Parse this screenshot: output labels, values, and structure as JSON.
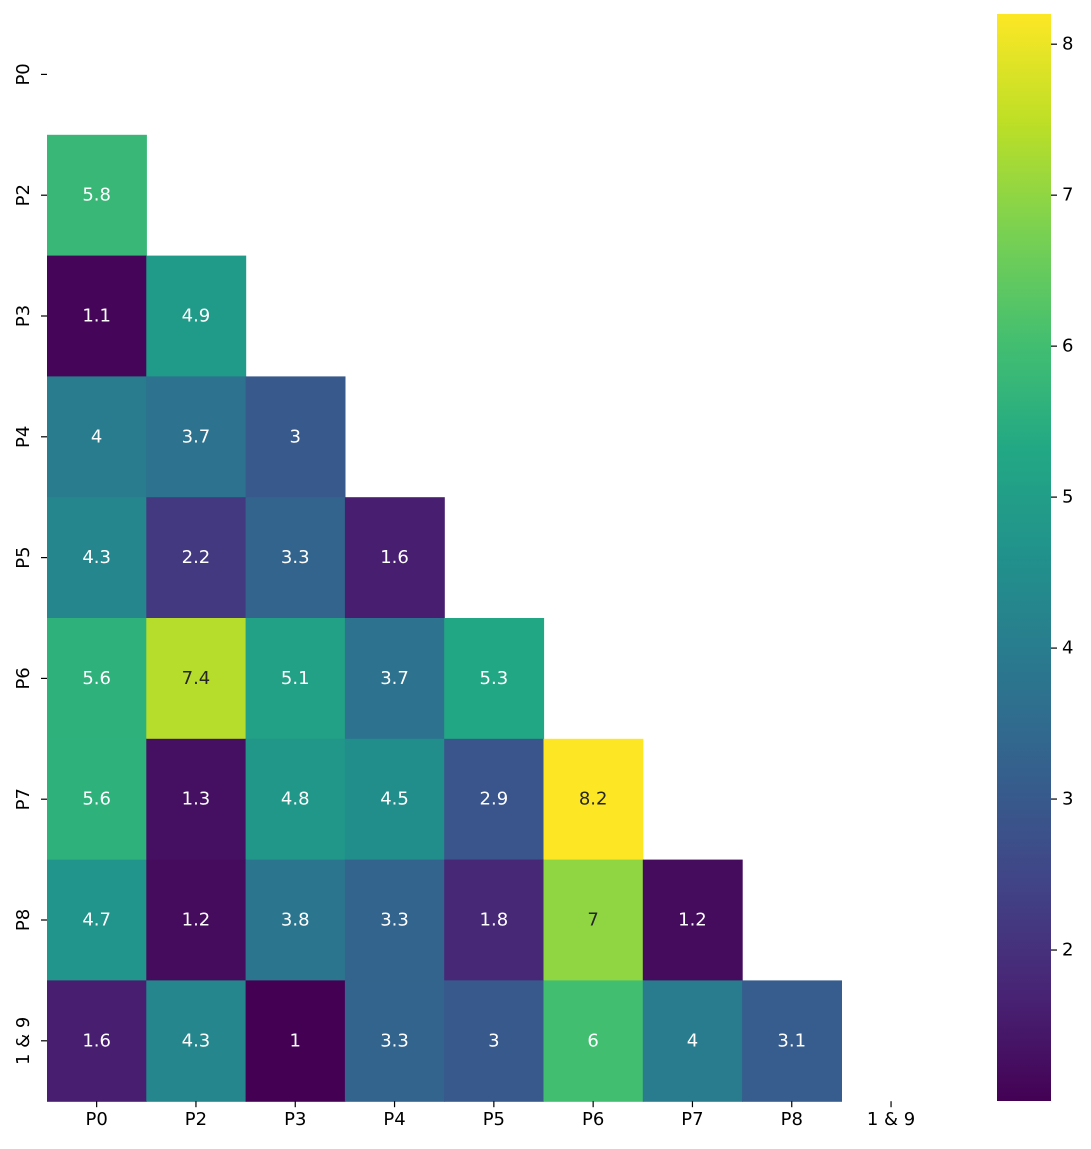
{
  "chart_data": {
    "type": "heatmap",
    "colormap": "viridis",
    "mask": "upper-triangle-including-diagonal",
    "rows": [
      "P0",
      "P2",
      "P3",
      "P4",
      "P5",
      "P6",
      "P7",
      "P8",
      "1 & 9"
    ],
    "columns": [
      "P0",
      "P2",
      "P3",
      "P4",
      "P5",
      "P6",
      "P7",
      "P8",
      "1 & 9"
    ],
    "values": [
      [
        null,
        null,
        null,
        null,
        null,
        null,
        null,
        null,
        null
      ],
      [
        5.8,
        null,
        null,
        null,
        null,
        null,
        null,
        null,
        null
      ],
      [
        1.1,
        4.9,
        null,
        null,
        null,
        null,
        null,
        null,
        null
      ],
      [
        4,
        3.7,
        3,
        null,
        null,
        null,
        null,
        null,
        null
      ],
      [
        4.3,
        2.2,
        3.3,
        1.6,
        null,
        null,
        null,
        null,
        null
      ],
      [
        5.6,
        7.4,
        5.1,
        3.7,
        5.3,
        null,
        null,
        null,
        null
      ],
      [
        5.6,
        1.3,
        4.8,
        4.5,
        2.9,
        8.2,
        null,
        null,
        null
      ],
      [
        4.7,
        1.2,
        3.8,
        3.3,
        1.8,
        7,
        1.2,
        null,
        null
      ],
      [
        1.6,
        4.3,
        1,
        3.3,
        3,
        6,
        4,
        3.1,
        null
      ]
    ],
    "annot": true,
    "colorbar": {
      "vmin": 1.0,
      "vmax": 8.2,
      "ticks": [
        2,
        3,
        4,
        5,
        6,
        7,
        8
      ]
    },
    "title": "",
    "xlabel": "",
    "ylabel": ""
  }
}
